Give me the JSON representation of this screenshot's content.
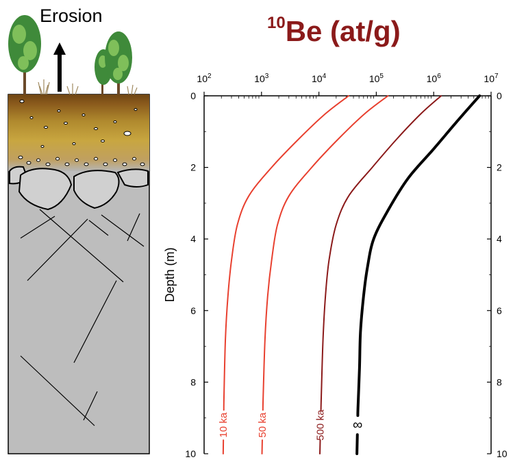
{
  "soil_figure": {
    "erosion_label": "Erosion"
  },
  "chart_data": {
    "type": "line",
    "title": "10Be (at/g)",
    "title_parts": {
      "superscript": "10",
      "text": "Be (at/g)"
    },
    "xlabel": "10Be (at/g)",
    "ylabel": "Depth (m)",
    "xscale": "log",
    "xlim": [
      100,
      10000000
    ],
    "ylim": [
      0,
      10
    ],
    "y_inverted": true,
    "x_ticks": [
      {
        "value": 100,
        "base": "10",
        "exp": "2"
      },
      {
        "value": 1000,
        "base": "10",
        "exp": "3"
      },
      {
        "value": 10000,
        "base": "10",
        "exp": "4"
      },
      {
        "value": 100000,
        "base": "10",
        "exp": "5"
      },
      {
        "value": 1000000,
        "base": "10",
        "exp": "6"
      },
      {
        "value": 10000000,
        "base": "10",
        "exp": "7"
      }
    ],
    "y_ticks": [
      "0",
      "2",
      "4",
      "6",
      "8",
      "10"
    ],
    "y_tick_values": [
      0,
      2,
      4,
      6,
      8,
      10
    ],
    "grid": false,
    "series": [
      {
        "name": "10 ka",
        "color": "#e8402f",
        "inline_label": true,
        "label_depth": 9.2,
        "x": [
          33000,
          13000,
          4500,
          1500,
          600,
          380,
          300,
          260,
          235,
          222,
          215
        ],
        "y": [
          0,
          0.5,
          1.2,
          2.0,
          2.8,
          3.6,
          4.6,
          5.6,
          6.8,
          8.4,
          10
        ]
      },
      {
        "name": "50 ka",
        "color": "#e8402f",
        "inline_label": true,
        "label_depth": 9.2,
        "x": [
          160000,
          63000,
          22000,
          7500,
          3000,
          1900,
          1500,
          1280,
          1150,
          1070,
          1020
        ],
        "y": [
          0,
          0.5,
          1.2,
          2.0,
          2.8,
          3.6,
          4.6,
          5.6,
          6.8,
          8.4,
          10
        ]
      },
      {
        "name": "500 ka",
        "color": "#8b1a1a",
        "inline_label": true,
        "label_depth": 9.2,
        "x": [
          1350000,
          600000,
          230000,
          85000,
          33000,
          20000,
          15000,
          13000,
          11800,
          11000,
          10400
        ],
        "y": [
          0,
          0.5,
          1.2,
          2.0,
          2.8,
          3.6,
          4.6,
          5.6,
          6.8,
          8.4,
          10
        ]
      },
      {
        "name": "∞",
        "color": "#000000",
        "inline_label": true,
        "label_depth": 9.2,
        "bold": true,
        "x": [
          6300000,
          4300000,
          2300000,
          980000,
          360000,
          160000,
          90000,
          70000,
          60000,
          53000,
          51000,
          48000,
          46000
        ],
        "y": [
          0,
          0.3,
          0.8,
          1.5,
          2.3,
          3.2,
          4.0,
          4.8,
          5.6,
          6.6,
          7.6,
          8.7,
          10
        ]
      }
    ]
  }
}
